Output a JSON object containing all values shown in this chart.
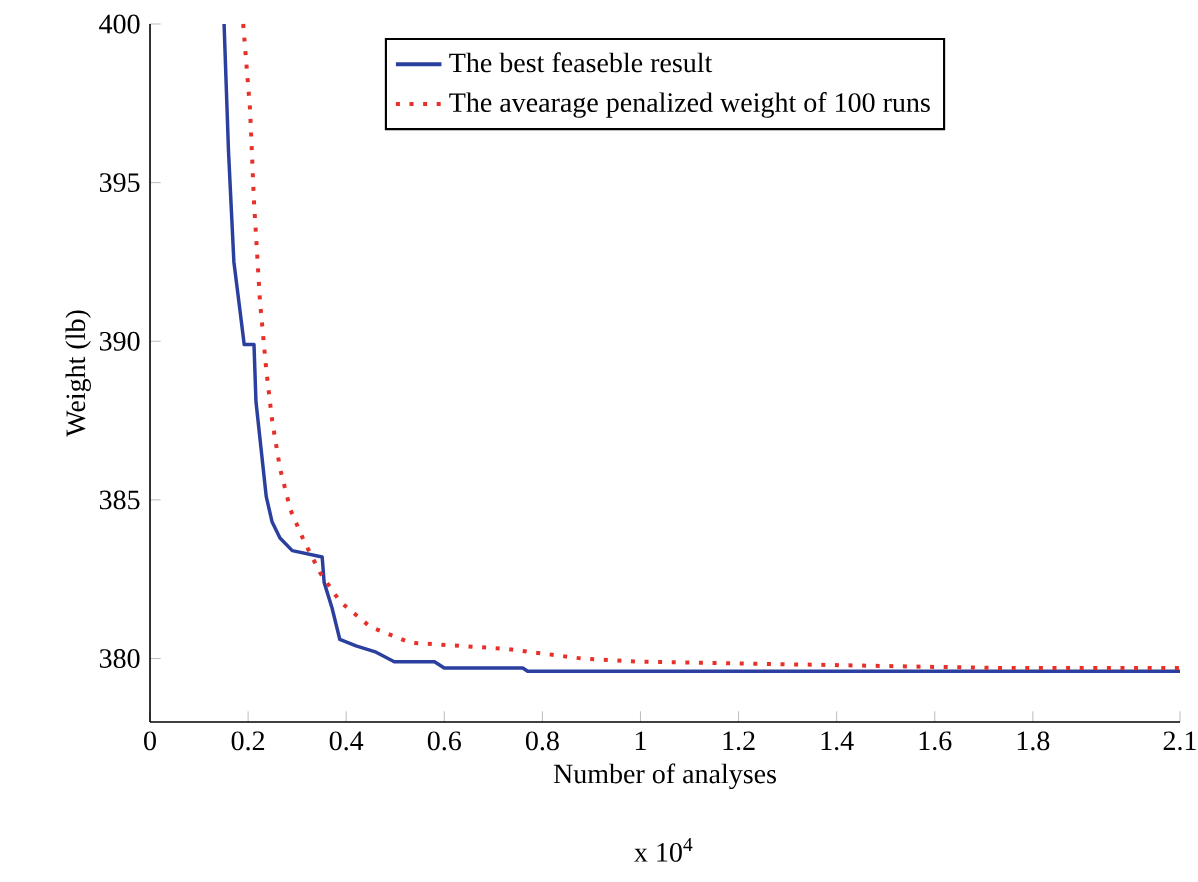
{
  "chart_data": {
    "type": "line",
    "xlabel": "Number of analyses",
    "ylabel": "Weight (lb)",
    "annotations": [
      "x 10$^{4}$"
    ],
    "xlim": [
      0,
      2.1
    ],
    "ylim": [
      378,
      400
    ],
    "xticks": [
      0,
      0.2,
      0.4,
      0.6,
      0.8,
      1,
      1.2,
      1.4,
      1.6,
      1.8,
      2.1
    ],
    "yticks": [
      380,
      385,
      390,
      395,
      400
    ],
    "legend": "top",
    "grid": false,
    "marker": "none",
    "series": [
      {
        "name": "The best feaseble result",
        "color": "#2b3f9e",
        "line_style": "solid",
        "x": [
          0.151,
          0.16,
          0.171,
          0.184,
          0.192,
          0.212,
          0.216,
          0.237,
          0.249,
          0.265,
          0.29,
          0.351,
          0.355,
          0.371,
          0.387,
          0.42,
          0.461,
          0.498,
          0.58,
          0.6,
          0.76,
          0.77,
          2.1
        ],
        "values": [
          400,
          396,
          392.5,
          390.9,
          389.9,
          389.9,
          388.1,
          385.1,
          384.3,
          383.8,
          383.4,
          383.2,
          382.4,
          381.6,
          380.6,
          380.4,
          380.2,
          379.9,
          379.9,
          379.7,
          379.7,
          379.6,
          379.6
        ]
      },
      {
        "name": "The avearage penalized weight of 100 runs",
        "color": "#e8302a",
        "line_style": "dotted",
        "x": [
          0.19,
          0.204,
          0.212,
          0.224,
          0.237,
          0.249,
          0.265,
          0.286,
          0.314,
          0.347,
          0.387,
          0.449,
          0.53,
          0.63,
          0.73,
          0.88,
          1.0,
          1.37,
          1.73,
          2.1
        ],
        "values": [
          400,
          397.3,
          394.4,
          391.3,
          389.1,
          387.5,
          386.0,
          384.7,
          383.7,
          382.7,
          381.8,
          381.0,
          380.5,
          380.4,
          380.3,
          380.0,
          379.9,
          379.8,
          379.7,
          379.7
        ]
      }
    ]
  }
}
